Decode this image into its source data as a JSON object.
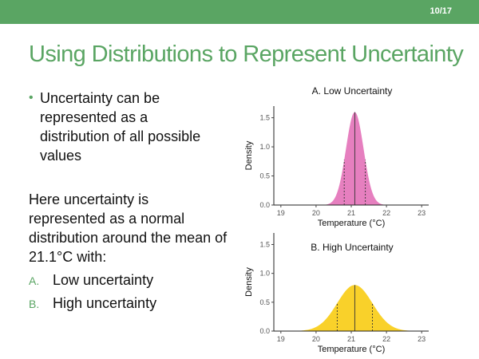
{
  "slide": {
    "page_number": "10/17",
    "title": "Using Distributions to Represent Uncertainty",
    "bullet": "Uncertainty can be represented as a distribution of all possible values",
    "paragraph": "Here uncertainty is represented as a normal distribution around the mean of 21.1°C with:",
    "list": [
      {
        "letter": "A.",
        "text": "Low uncertainty"
      },
      {
        "letter": "B.",
        "text": "High uncertainty"
      }
    ],
    "accent_color": "#5aa563"
  },
  "chart_data": [
    {
      "type": "area",
      "title": "A. Low Uncertainty",
      "xlabel": "Temperature (°C)",
      "ylabel": "Density",
      "distribution": "normal",
      "mean": 21.1,
      "sd": 0.25,
      "quantile_lines": [
        20.8,
        21.1,
        21.4
      ],
      "xlim": [
        18.8,
        23.2
      ],
      "ylim": [
        0,
        1.7
      ],
      "x_ticks": [
        19,
        20,
        21,
        22,
        23
      ],
      "y_ticks": [
        0.0,
        0.5,
        1.0,
        1.5
      ],
      "x_tick_labels": [
        "19",
        "20",
        "21",
        "22",
        "23"
      ],
      "y_tick_labels": [
        "0.0",
        "0.5",
        "1.0",
        "1.5"
      ],
      "fill_color": "#e67fbf",
      "grid": false
    },
    {
      "type": "area",
      "title": "B. High Uncertainty",
      "xlabel": "Temperature (°C)",
      "ylabel": "Density",
      "distribution": "normal",
      "mean": 21.1,
      "sd": 0.5,
      "quantile_lines": [
        20.6,
        21.1,
        21.6
      ],
      "xlim": [
        18.8,
        23.2
      ],
      "ylim": [
        0,
        1.7
      ],
      "x_ticks": [
        19,
        20,
        21,
        22,
        23
      ],
      "y_ticks": [
        0.0,
        0.5,
        1.0,
        1.5
      ],
      "x_tick_labels": [
        "19",
        "20",
        "21",
        "22",
        "23"
      ],
      "y_tick_labels": [
        "0.0",
        "0.5",
        "1.0",
        "1.5"
      ],
      "fill_color": "#f9d12a",
      "grid": false
    }
  ]
}
